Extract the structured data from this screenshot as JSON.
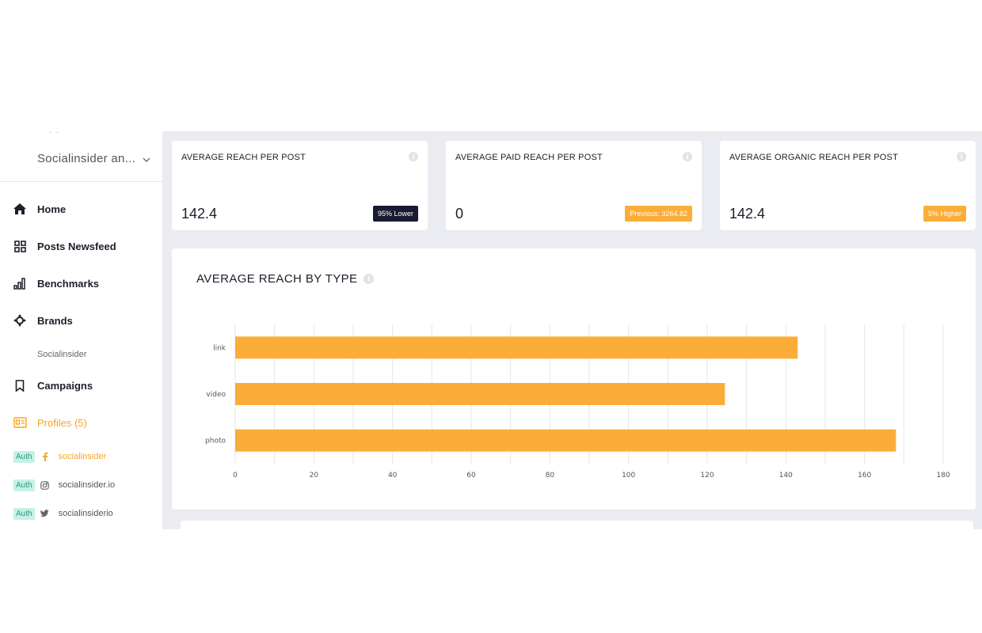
{
  "sidebar": {
    "org_name": "Socialinsider an...",
    "nav": [
      {
        "label": "Home",
        "icon": "home-icon"
      },
      {
        "label": "Posts Newsfeed",
        "icon": "grid-icon"
      },
      {
        "label": "Benchmarks",
        "icon": "bar-chart-icon"
      },
      {
        "label": "Brands",
        "icon": "crosshair-icon"
      },
      {
        "label": "Campaigns",
        "icon": "bookmark-icon"
      },
      {
        "label": "Profiles (5)",
        "icon": "profile-card-icon"
      }
    ],
    "brand_sub": "Socialinsider",
    "profiles": [
      {
        "auth": "Auth",
        "network": "facebook-icon",
        "name": "socialinsider"
      },
      {
        "auth": "Auth",
        "network": "instagram-icon",
        "name": "socialinsider.io"
      },
      {
        "auth": "Auth",
        "network": "twitter-icon",
        "name": "socialinsiderio"
      }
    ]
  },
  "kpis": [
    {
      "title": "AVERAGE REACH PER POST",
      "value": "142.4",
      "badge": "95% Lower",
      "badge_style": "dark"
    },
    {
      "title": "AVERAGE PAID REACH PER POST",
      "value": "0",
      "badge": "Previous: 3264.82",
      "badge_style": "orange"
    },
    {
      "title": "AVERAGE ORGANIC REACH PER POST",
      "value": "142.4",
      "badge": "5% Higher",
      "badge_style": "orange"
    }
  ],
  "colors": {
    "accent": "#fbad38",
    "dark_badge": "#1b1a33",
    "auth_bg": "#c5f1e6"
  },
  "chart": {
    "title": "AVERAGE REACH BY TYPE"
  },
  "chart_data": {
    "type": "bar",
    "orientation": "horizontal",
    "title": "AVERAGE REACH BY TYPE",
    "categories": [
      "link",
      "video",
      "photo"
    ],
    "values": [
      143,
      124.5,
      168
    ],
    "xlim": [
      0,
      180
    ],
    "xticks": [
      "0",
      "20",
      "40",
      "60",
      "80",
      "100",
      "120",
      "140",
      "160",
      "180"
    ],
    "grid": true,
    "color": "#fbad38"
  }
}
